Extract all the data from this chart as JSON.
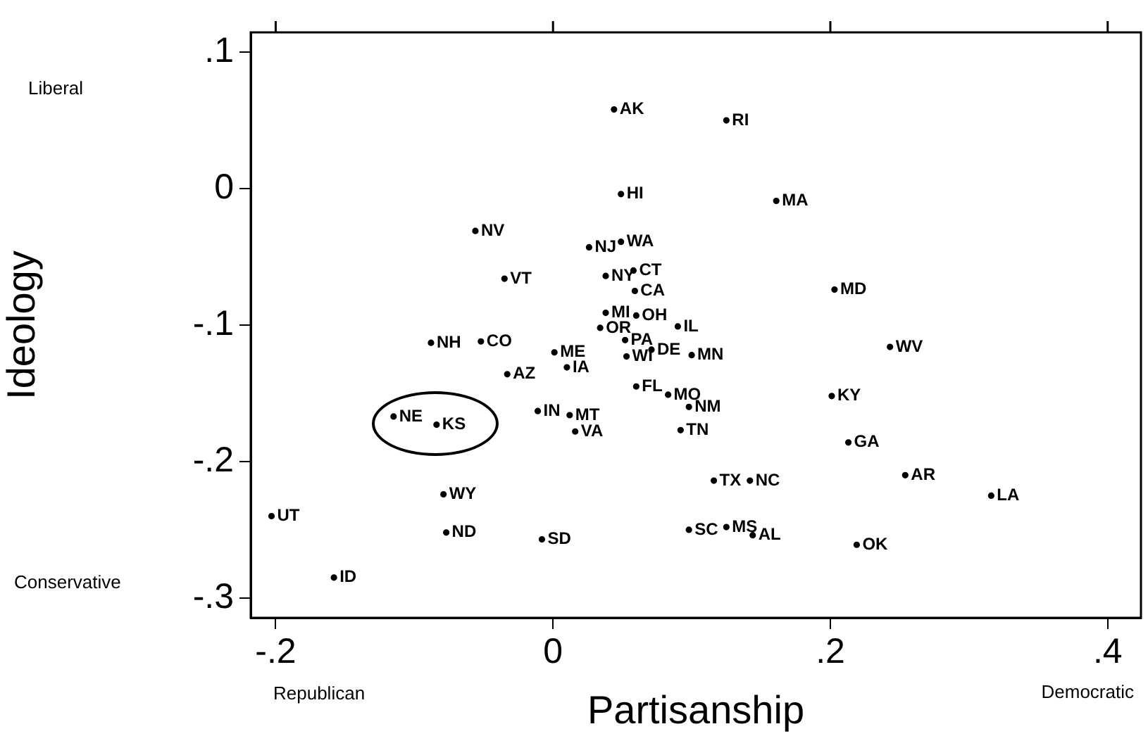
{
  "chart_data": {
    "type": "scatter",
    "xlabel": "Partisanship",
    "ylabel": "Ideology",
    "xlim": [
      -0.218,
      0.424
    ],
    "ylim": [
      -0.3145,
      0.1145
    ],
    "xticks": [
      {
        "value": -0.2,
        "label": "-.2"
      },
      0,
      {
        "value": 0.2,
        "label": ".2"
      },
      {
        "value": 0.4,
        "label": ".4"
      }
    ],
    "yticks": [
      {
        "value": -0.3,
        "label": "-.3"
      },
      {
        "value": -0.2,
        "label": "-.2"
      },
      {
        "value": -0.1,
        "label": "-.1"
      },
      0,
      {
        "value": 0.1,
        "label": ".1"
      }
    ],
    "grid": false,
    "legend": false,
    "marker": "circle",
    "annotations": [
      "Liberal",
      "Conservative",
      "Republican",
      "Democratic"
    ],
    "series": [
      {
        "color": "#000000",
        "x": [
          0.044,
          0.049,
          -0.056,
          0.026,
          0.049,
          0.038,
          0.058,
          -0.035,
          0.059,
          0.125,
          0.161,
          0.203,
          0.038,
          0.06,
          0.09,
          0.034,
          0.052,
          0.071,
          0.053,
          0.1,
          -0.088,
          -0.052,
          0.001,
          0.01,
          -0.033,
          0.06,
          0.083,
          0.098,
          0.092,
          -0.115,
          -0.084,
          -0.011,
          0.012,
          0.016,
          -0.079,
          -0.203,
          -0.077,
          -0.008,
          -0.158,
          0.243,
          0.201,
          0.213,
          0.116,
          0.142,
          0.254,
          0.316,
          0.098,
          0.125,
          0.144,
          0.219
        ],
        "values": [
          0.058,
          -0.004,
          -0.031,
          -0.043,
          -0.039,
          -0.064,
          -0.06,
          -0.066,
          -0.075,
          0.05,
          -0.009,
          -0.074,
          -0.091,
          -0.093,
          -0.101,
          -0.102,
          -0.111,
          -0.118,
          -0.123,
          -0.122,
          -0.113,
          -0.112,
          -0.12,
          -0.131,
          -0.136,
          -0.145,
          -0.151,
          -0.16,
          -0.177,
          -0.167,
          -0.173,
          -0.163,
          -0.166,
          -0.178,
          -0.224,
          -0.24,
          -0.252,
          -0.257,
          -0.285,
          -0.116,
          -0.152,
          -0.186,
          -0.214,
          -0.214,
          -0.21,
          -0.225,
          -0.25,
          -0.248,
          -0.254,
          -0.261
        ],
        "value_labels": [
          "AK",
          "HI",
          "NV",
          "NJ",
          "WA",
          "NY",
          "CT",
          "VT",
          "CA",
          "RI",
          "MA",
          "MD",
          "MI",
          "OH",
          "IL",
          "OR",
          "PA",
          "DE",
          "WI",
          "MN",
          "NH",
          "CO",
          "ME",
          "IA",
          "AZ",
          "FL",
          "MO",
          "NM",
          "TN",
          "NE",
          "KS",
          "IN",
          "MT",
          "VA",
          "WY",
          "UT",
          "ND",
          "SD",
          "ID",
          "WV",
          "KY",
          "GA",
          "TX",
          "NC",
          "AR",
          "LA",
          "SC",
          "MS",
          "AL",
          "OK"
        ]
      }
    ]
  }
}
